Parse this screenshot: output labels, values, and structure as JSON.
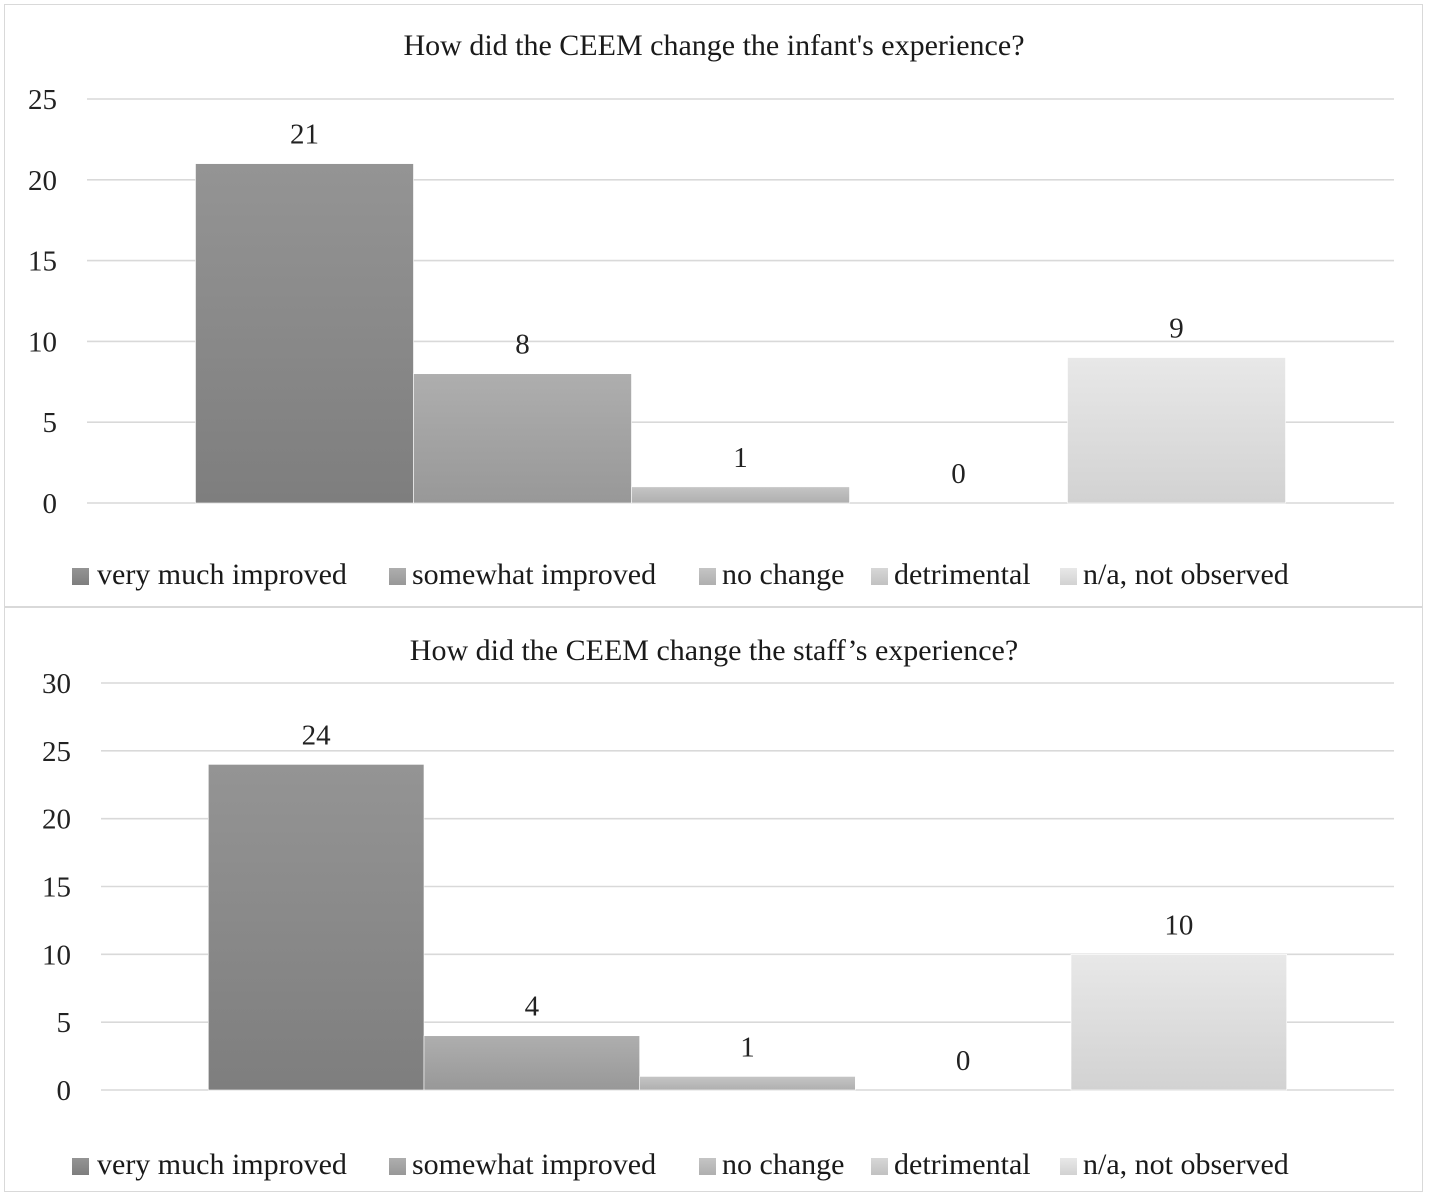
{
  "chart_data": [
    {
      "type": "bar",
      "title": "How did the CEEM change the infant's experience?",
      "categories": [
        "very much improved",
        "somewhat improved",
        "no change",
        "detrimental",
        "n/a, not observed"
      ],
      "values": [
        21,
        8,
        1,
        0,
        9
      ],
      "data_labels": [
        "21",
        "8",
        "1",
        "0",
        "9"
      ],
      "ylim": [
        0,
        25
      ],
      "yticks": [
        "0",
        "5",
        "10",
        "15",
        "20",
        "25"
      ],
      "grid": true,
      "legend_position": "bottom",
      "xlabel": "",
      "ylabel": ""
    },
    {
      "type": "bar",
      "title": "How did the CEEM change the staff’s experience?",
      "categories": [
        "very much improved",
        "somewhat improved",
        "no change",
        "detrimental",
        "n/a, not observed"
      ],
      "values": [
        24,
        4,
        1,
        0,
        10
      ],
      "data_labels": [
        "24",
        "4",
        "1",
        "0",
        "10"
      ],
      "ylim": [
        0,
        30
      ],
      "yticks": [
        "0",
        "5",
        "10",
        "15",
        "20",
        "25",
        "30"
      ],
      "grid": true,
      "legend_position": "bottom",
      "xlabel": "",
      "ylabel": ""
    }
  ],
  "colors": {
    "series": [
      "#8c8c8c",
      "#a6a6a6",
      "#bdbdbd",
      "#cfcfcf",
      "#e0e0e0"
    ],
    "grid": "#d9d9d9"
  }
}
